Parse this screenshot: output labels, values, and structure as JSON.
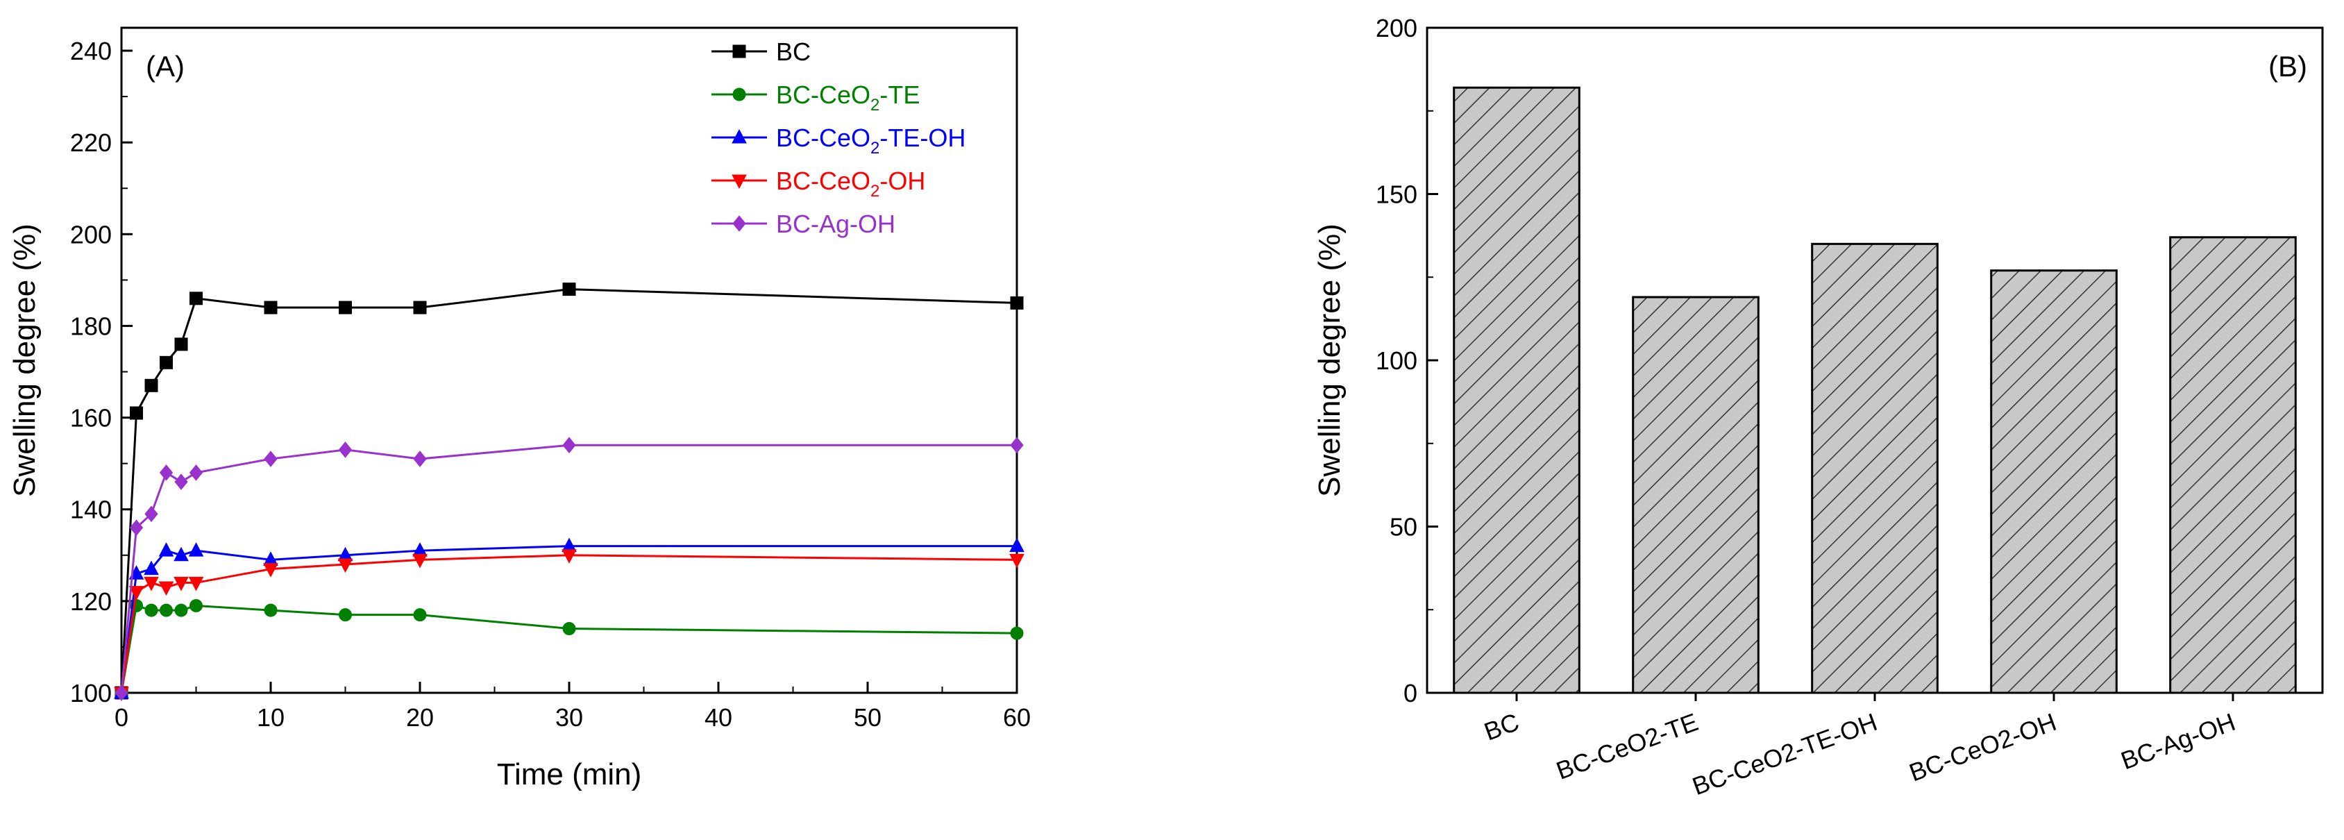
{
  "chart_data": [
    {
      "type": "line",
      "panel_label": "(A)",
      "xlabel": "Time (min)",
      "ylabel": "Swelling degree (%)",
      "xlim": [
        0,
        60
      ],
      "ylim": [
        100,
        245
      ],
      "xticks": [
        "0",
        "10",
        "20",
        "30",
        "40",
        "50",
        "60"
      ],
      "yticks": [
        "100",
        "120",
        "140",
        "160",
        "180",
        "200",
        "220",
        "240"
      ],
      "legend_position": "top-right",
      "series": [
        {
          "name": "BC",
          "legend": {
            "base": "BC",
            "sub": "",
            "tail": ""
          },
          "color": "#000000",
          "marker": "square",
          "x": [
            0,
            1,
            2,
            3,
            4,
            5,
            10,
            15,
            20,
            30,
            60
          ],
          "y": [
            100,
            161,
            167,
            172,
            176,
            186,
            184,
            184,
            184,
            188,
            185
          ]
        },
        {
          "name": "BC-CeO2-TE",
          "legend": {
            "base": "BC-CeO",
            "sub": "2",
            "tail": "-TE"
          },
          "color": "#008000",
          "marker": "circle",
          "x": [
            0,
            1,
            2,
            3,
            4,
            5,
            10,
            15,
            20,
            30,
            60
          ],
          "y": [
            100,
            119,
            118,
            118,
            118,
            119,
            118,
            117,
            117,
            114,
            113
          ]
        },
        {
          "name": "BC-CeO2-TE-OH",
          "legend": {
            "base": "BC-CeO",
            "sub": "2",
            "tail": "-TE-OH"
          },
          "color": "#0000ff",
          "marker": "triangle-up",
          "x": [
            0,
            1,
            2,
            3,
            4,
            5,
            10,
            15,
            20,
            30,
            60
          ],
          "y": [
            100,
            126,
            127,
            131,
            130,
            131,
            129,
            130,
            131,
            132,
            132
          ]
        },
        {
          "name": "BC-CeO2-OH",
          "legend": {
            "base": "BC-CeO",
            "sub": "2",
            "tail": "-OH"
          },
          "color": "#ff0000",
          "marker": "triangle-down",
          "x": [
            0,
            1,
            2,
            3,
            4,
            5,
            10,
            15,
            20,
            30,
            60
          ],
          "y": [
            100,
            122,
            124,
            123,
            124,
            124,
            127,
            128,
            129,
            130,
            129
          ]
        },
        {
          "name": "BC-Ag-OH",
          "legend": {
            "base": "BC-Ag-OH",
            "sub": "",
            "tail": ""
          },
          "color": "#9932cc",
          "marker": "diamond",
          "x": [
            0,
            1,
            2,
            3,
            4,
            5,
            10,
            15,
            20,
            30,
            60
          ],
          "y": [
            100,
            136,
            139,
            148,
            146,
            148,
            151,
            153,
            151,
            154,
            154
          ]
        }
      ]
    },
    {
      "type": "bar",
      "panel_label": "(B)",
      "xlabel": "",
      "ylabel": "Swelling degree (%)",
      "ylim": [
        0,
        200
      ],
      "yticks": [
        "0",
        "50",
        "100",
        "150",
        "200"
      ],
      "categories": [
        "BC",
        "BC-CeO2-TE",
        "BC-CeO2-TE-OH",
        "BC-CeO2-OH",
        "BC-Ag-OH"
      ],
      "values": [
        182,
        119,
        135,
        127,
        137
      ],
      "bar_color": "#c0c0c0"
    }
  ]
}
